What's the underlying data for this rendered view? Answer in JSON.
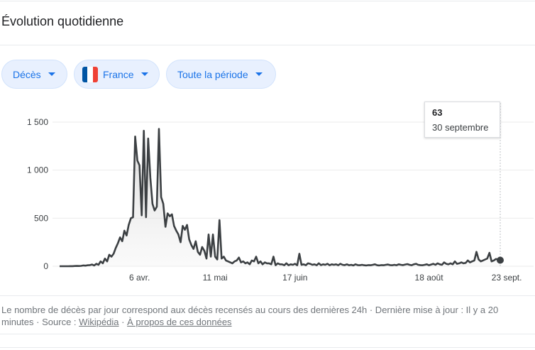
{
  "header": {
    "title": "Évolution quotidienne"
  },
  "filters": {
    "metric": "Décès",
    "country": "France",
    "period": "Toute la période"
  },
  "colors": {
    "line": "#3c4043",
    "grid": "#ebebeb",
    "chip_text": "#1a73e8",
    "chip_bg": "#e8f0fe"
  },
  "tooltip": {
    "value": "63",
    "date": "30 septembre"
  },
  "footer": {
    "text": "Le nombre de décès par jour correspond aux décès recensés au cours des dernières 24h · Dernière mise à jour : Il y a 20 minutes",
    "sep1": "·",
    "source_label": "Source :",
    "source_link": "Wikipédia",
    "sep2": "·",
    "about_link": "À propos de ces données"
  },
  "chart_data": {
    "type": "area",
    "title": "",
    "xlabel": "",
    "ylabel": "",
    "ylim": [
      0,
      1500
    ],
    "yticks": [
      0,
      500,
      1000,
      1500
    ],
    "ytick_labels": [
      "0",
      "500",
      "1 000",
      "1 500"
    ],
    "xtick_labels": [
      "6 avr.",
      "11 mai",
      "17 juin",
      "18 août",
      "23 sept."
    ],
    "xtick_day_index": [
      37,
      72,
      109,
      171,
      207
    ],
    "grid": true,
    "series": [
      {
        "values": [
          0,
          0,
          0,
          0,
          0,
          1,
          1,
          2,
          3,
          2,
          4,
          8,
          6,
          10,
          12,
          18,
          8,
          25,
          15,
          50,
          30,
          80,
          50,
          120,
          100,
          130,
          190,
          240,
          300,
          260,
          370,
          320,
          430,
          500,
          510,
          1350,
          1100,
          1050,
          530,
          1410,
          510,
          1330,
          920,
          650,
          580,
          620,
          1430,
          720,
          650,
          410,
          550,
          520,
          540,
          420,
          370,
          330,
          250,
          420,
          380,
          430,
          280,
          220,
          180,
          260,
          150,
          120,
          200,
          160,
          80,
          330,
          100,
          330,
          100,
          70,
          480,
          80,
          100,
          60,
          50,
          40,
          30,
          50,
          60,
          90,
          40,
          50,
          30,
          40,
          20,
          60,
          50,
          100,
          30,
          50,
          20,
          40,
          30,
          30,
          20,
          100,
          10,
          30,
          20,
          20,
          10,
          30,
          10,
          20,
          15,
          25,
          10,
          130,
          15,
          20,
          10,
          30,
          25,
          15,
          20,
          10,
          30,
          12,
          20,
          15,
          25,
          10,
          20,
          15,
          20,
          10,
          25,
          15,
          12,
          20,
          10,
          15,
          8,
          20,
          12,
          10,
          15,
          10,
          8,
          12,
          10,
          15,
          20,
          10,
          8,
          12,
          10,
          15,
          18,
          12,
          10,
          15,
          10,
          20,
          15,
          12,
          18,
          22,
          15,
          10,
          20,
          25,
          15,
          12,
          10,
          15,
          20,
          10,
          18,
          25,
          15,
          30,
          20,
          15,
          40,
          25,
          20,
          30,
          20,
          50,
          25,
          30,
          40,
          30,
          35,
          60,
          40,
          50,
          60,
          150,
          70,
          50,
          60,
          70,
          80,
          140,
          50,
          60,
          75,
          70,
          63
        ]
      }
    ]
  }
}
